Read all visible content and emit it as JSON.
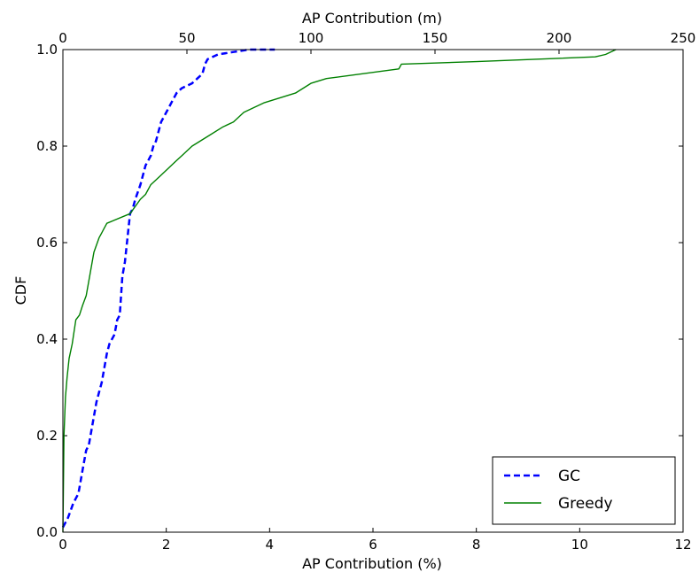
{
  "chart_data": {
    "type": "line",
    "xlabel": "AP Contribution (%)",
    "ylabel": "CDF",
    "x2label": "AP Contribution (m)",
    "xlim": [
      0,
      12
    ],
    "ylim": [
      0.0,
      1.0
    ],
    "x2lim": [
      0,
      250
    ],
    "xticks": [
      "0",
      "2",
      "4",
      "6",
      "8",
      "10",
      "12"
    ],
    "yticks": [
      "0.0",
      "0.2",
      "0.4",
      "0.6",
      "0.8",
      "1.0"
    ],
    "x2ticks": [
      "0",
      "50",
      "100",
      "150",
      "200",
      "250"
    ],
    "grid": false,
    "legend_position": "lower-right",
    "series": [
      {
        "name": "GC",
        "color": "#0000ff",
        "style": "dashed",
        "x": [
          0.0,
          0.1,
          0.2,
          0.3,
          0.35,
          0.4,
          0.45,
          0.5,
          0.55,
          0.6,
          0.65,
          0.7,
          0.75,
          0.8,
          0.85,
          0.9,
          0.95,
          1.0,
          1.05,
          1.1,
          1.15,
          1.2,
          1.25,
          1.3,
          1.35,
          1.4,
          1.5,
          1.6,
          1.7,
          1.75,
          1.8,
          1.9,
          2.0,
          2.05,
          2.1,
          2.2,
          2.3,
          2.5,
          2.6,
          2.7,
          2.75,
          2.8,
          3.0,
          3.3,
          3.6,
          3.8,
          4.1
        ],
        "y": [
          0.01,
          0.03,
          0.06,
          0.08,
          0.11,
          0.14,
          0.17,
          0.18,
          0.21,
          0.24,
          0.27,
          0.29,
          0.31,
          0.34,
          0.37,
          0.39,
          0.4,
          0.41,
          0.44,
          0.45,
          0.53,
          0.56,
          0.61,
          0.66,
          0.67,
          0.69,
          0.72,
          0.76,
          0.78,
          0.8,
          0.81,
          0.85,
          0.87,
          0.88,
          0.89,
          0.91,
          0.92,
          0.93,
          0.94,
          0.95,
          0.97,
          0.98,
          0.99,
          0.995,
          1.0,
          1.0,
          1.0
        ]
      },
      {
        "name": "Greedy",
        "color": "#008000",
        "style": "solid",
        "x": [
          0.0,
          0.02,
          0.05,
          0.08,
          0.12,
          0.18,
          0.25,
          0.32,
          0.38,
          0.45,
          0.5,
          0.55,
          0.6,
          0.7,
          0.75,
          0.8,
          0.85,
          1.3,
          1.5,
          1.6,
          1.7,
          1.8,
          2.0,
          2.2,
          2.3,
          2.5,
          2.8,
          3.1,
          3.3,
          3.5,
          3.7,
          3.9,
          4.5,
          4.8,
          5.1,
          6.5,
          6.55,
          8.0,
          10.3,
          10.5,
          10.7
        ],
        "y": [
          0.0,
          0.2,
          0.28,
          0.32,
          0.36,
          0.39,
          0.44,
          0.45,
          0.47,
          0.49,
          0.52,
          0.55,
          0.58,
          0.61,
          0.62,
          0.63,
          0.64,
          0.66,
          0.69,
          0.7,
          0.72,
          0.73,
          0.75,
          0.77,
          0.78,
          0.8,
          0.82,
          0.84,
          0.85,
          0.87,
          0.88,
          0.89,
          0.91,
          0.93,
          0.94,
          0.96,
          0.97,
          0.975,
          0.985,
          0.99,
          1.0
        ]
      }
    ]
  }
}
